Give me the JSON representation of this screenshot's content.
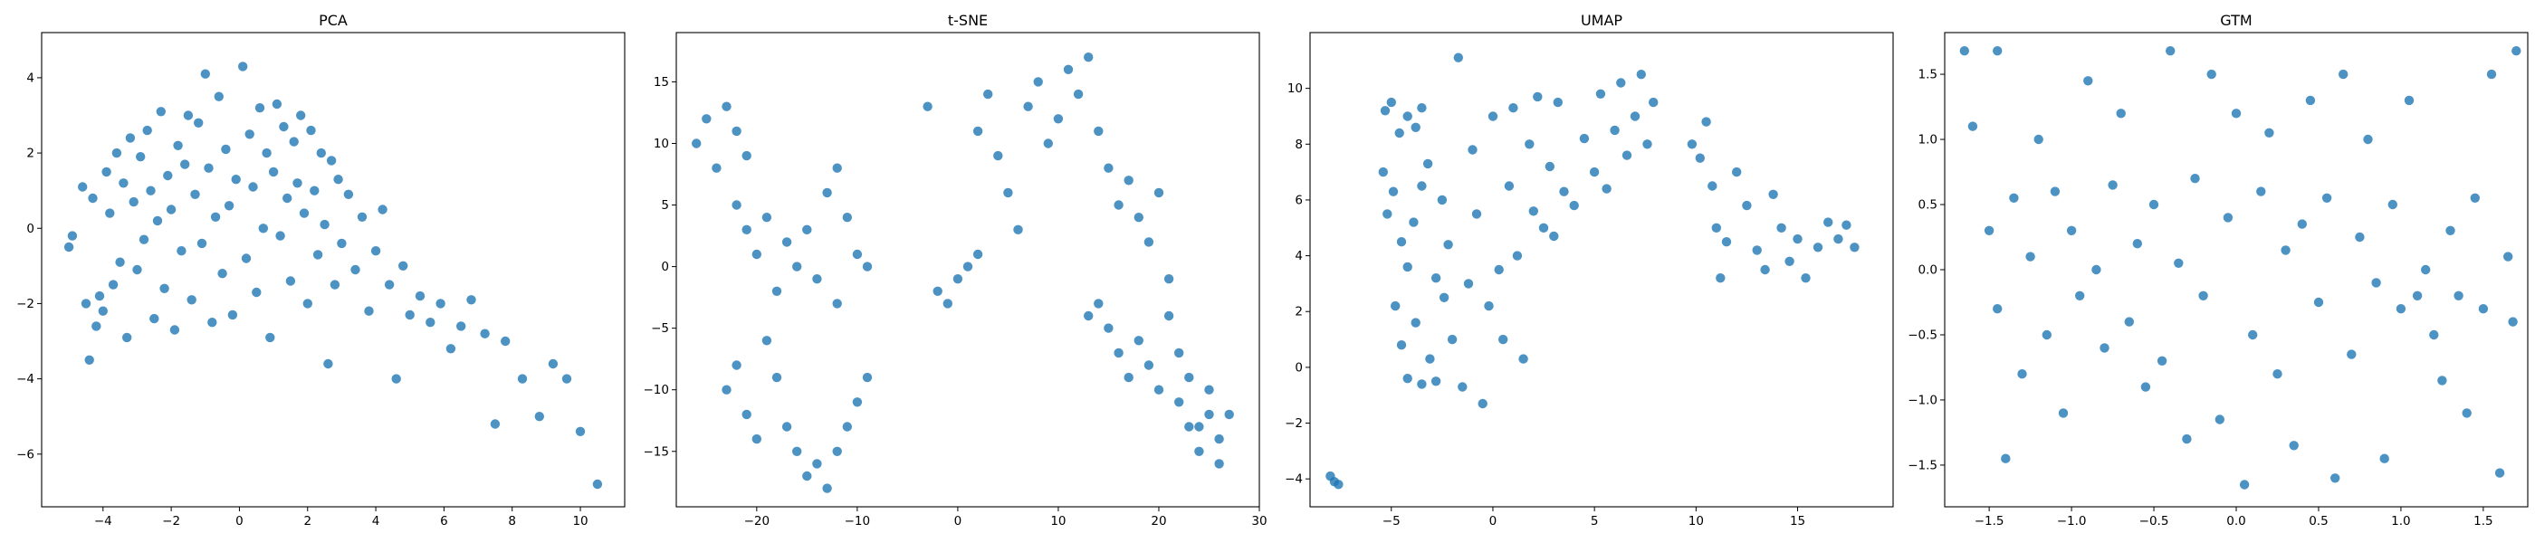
{
  "chart_data": [
    {
      "type": "scatter",
      "title": "PCA",
      "xlabel": "",
      "ylabel": "",
      "xlim": [
        -5.8,
        11.3
      ],
      "ylim": [
        -7.4,
        5.2
      ],
      "xticks": [
        -4,
        -2,
        0,
        2,
        4,
        6,
        8,
        10
      ],
      "yticks": [
        -6,
        -4,
        -2,
        0,
        2,
        4
      ],
      "grid": false,
      "color": "#1f77b4",
      "points": [
        [
          -5.0,
          -0.5
        ],
        [
          -4.9,
          -0.2
        ],
        [
          -4.6,
          1.1
        ],
        [
          -4.5,
          -2.0
        ],
        [
          -4.4,
          -3.5
        ],
        [
          -4.3,
          0.8
        ],
        [
          -4.2,
          -2.6
        ],
        [
          -4.1,
          -1.8
        ],
        [
          -4.0,
          -2.2
        ],
        [
          -3.9,
          1.5
        ],
        [
          -3.8,
          0.4
        ],
        [
          -3.7,
          -1.5
        ],
        [
          -3.6,
          2.0
        ],
        [
          -3.5,
          -0.9
        ],
        [
          -3.4,
          1.2
        ],
        [
          -3.3,
          -2.9
        ],
        [
          -3.2,
          2.4
        ],
        [
          -3.1,
          0.7
        ],
        [
          -3.0,
          -1.1
        ],
        [
          -2.9,
          1.9
        ],
        [
          -2.8,
          -0.3
        ],
        [
          -2.7,
          2.6
        ],
        [
          -2.6,
          1.0
        ],
        [
          -2.5,
          -2.4
        ],
        [
          -2.4,
          0.2
        ],
        [
          -2.3,
          3.1
        ],
        [
          -2.2,
          -1.6
        ],
        [
          -2.1,
          1.4
        ],
        [
          -2.0,
          0.5
        ],
        [
          -1.9,
          -2.7
        ],
        [
          -1.8,
          2.2
        ],
        [
          -1.7,
          -0.6
        ],
        [
          -1.6,
          1.7
        ],
        [
          -1.5,
          3.0
        ],
        [
          -1.4,
          -1.9
        ],
        [
          -1.3,
          0.9
        ],
        [
          -1.2,
          2.8
        ],
        [
          -1.1,
          -0.4
        ],
        [
          -1.0,
          4.1
        ],
        [
          -0.9,
          1.6
        ],
        [
          -0.8,
          -2.5
        ],
        [
          -0.7,
          0.3
        ],
        [
          -0.6,
          3.5
        ],
        [
          -0.5,
          -1.2
        ],
        [
          -0.4,
          2.1
        ],
        [
          -0.3,
          0.6
        ],
        [
          -0.2,
          -2.3
        ],
        [
          -0.1,
          1.3
        ],
        [
          0.1,
          4.3
        ],
        [
          0.2,
          -0.8
        ],
        [
          0.3,
          2.5
        ],
        [
          0.4,
          1.1
        ],
        [
          0.5,
          -1.7
        ],
        [
          0.6,
          3.2
        ],
        [
          0.7,
          0.0
        ],
        [
          0.8,
          2.0
        ],
        [
          0.9,
          -2.9
        ],
        [
          1.0,
          1.5
        ],
        [
          1.1,
          3.3
        ],
        [
          1.2,
          -0.2
        ],
        [
          1.3,
          2.7
        ],
        [
          1.4,
          0.8
        ],
        [
          1.5,
          -1.4
        ],
        [
          1.6,
          2.3
        ],
        [
          1.7,
          1.2
        ],
        [
          1.8,
          3.0
        ],
        [
          1.9,
          0.4
        ],
        [
          2.0,
          -2.0
        ],
        [
          2.1,
          2.6
        ],
        [
          2.2,
          1.0
        ],
        [
          2.3,
          -0.7
        ],
        [
          2.4,
          2.0
        ],
        [
          2.5,
          0.1
        ],
        [
          2.6,
          -3.6
        ],
        [
          2.7,
          1.8
        ],
        [
          2.8,
          -1.5
        ],
        [
          2.9,
          1.3
        ],
        [
          3.0,
          -0.4
        ],
        [
          3.2,
          0.9
        ],
        [
          3.4,
          -1.1
        ],
        [
          3.6,
          0.3
        ],
        [
          3.8,
          -2.2
        ],
        [
          4.0,
          -0.6
        ],
        [
          4.2,
          0.5
        ],
        [
          4.4,
          -1.5
        ],
        [
          4.6,
          -4.0
        ],
        [
          4.8,
          -1.0
        ],
        [
          5.0,
          -2.3
        ],
        [
          5.3,
          -1.8
        ],
        [
          5.6,
          -2.5
        ],
        [
          5.9,
          -2.0
        ],
        [
          6.2,
          -3.2
        ],
        [
          6.5,
          -2.6
        ],
        [
          6.8,
          -1.9
        ],
        [
          7.2,
          -2.8
        ],
        [
          7.5,
          -5.2
        ],
        [
          7.8,
          -3.0
        ],
        [
          8.3,
          -4.0
        ],
        [
          8.8,
          -5.0
        ],
        [
          9.2,
          -3.6
        ],
        [
          9.6,
          -4.0
        ],
        [
          10.0,
          -5.4
        ],
        [
          10.5,
          -6.8
        ]
      ]
    },
    {
      "type": "scatter",
      "title": "t-SNE",
      "xlabel": "",
      "ylabel": "",
      "xlim": [
        -28,
        30
      ],
      "ylim": [
        -19.5,
        19
      ],
      "xticks": [
        -20,
        -10,
        0,
        10,
        20,
        30
      ],
      "yticks": [
        -15,
        -10,
        -5,
        0,
        5,
        10,
        15
      ],
      "grid": false,
      "color": "#1f77b4",
      "points": [
        [
          -26,
          10
        ],
        [
          -25,
          12
        ],
        [
          -24,
          8
        ],
        [
          -23,
          13
        ],
        [
          -22,
          11
        ],
        [
          -21,
          9
        ],
        [
          -22,
          5
        ],
        [
          -21,
          3
        ],
        [
          -20,
          1
        ],
        [
          -19,
          4
        ],
        [
          -18,
          -2
        ],
        [
          -17,
          2
        ],
        [
          -16,
          0
        ],
        [
          -15,
          3
        ],
        [
          -14,
          -1
        ],
        [
          -13,
          6
        ],
        [
          -12,
          8
        ],
        [
          -11,
          4
        ],
        [
          -10,
          1
        ],
        [
          -9,
          0
        ],
        [
          -12,
          -3
        ],
        [
          -23,
          -10
        ],
        [
          -22,
          -8
        ],
        [
          -21,
          -12
        ],
        [
          -20,
          -14
        ],
        [
          -19,
          -6
        ],
        [
          -18,
          -9
        ],
        [
          -17,
          -13
        ],
        [
          -16,
          -15
        ],
        [
          -15,
          -17
        ],
        [
          -14,
          -16
        ],
        [
          -13,
          -18
        ],
        [
          -12,
          -15
        ],
        [
          -11,
          -13
        ],
        [
          -10,
          -11
        ],
        [
          -9,
          -9
        ],
        [
          -3,
          13
        ],
        [
          -2,
          -2
        ],
        [
          -1,
          -3
        ],
        [
          0,
          -1
        ],
        [
          1,
          0
        ],
        [
          2,
          1
        ],
        [
          3,
          14
        ],
        [
          2,
          11
        ],
        [
          4,
          9
        ],
        [
          5,
          6
        ],
        [
          6,
          3
        ],
        [
          7,
          13
        ],
        [
          8,
          15
        ],
        [
          9,
          10
        ],
        [
          10,
          12
        ],
        [
          11,
          16
        ],
        [
          12,
          14
        ],
        [
          13,
          17
        ],
        [
          14,
          11
        ],
        [
          15,
          8
        ],
        [
          16,
          5
        ],
        [
          17,
          7
        ],
        [
          18,
          4
        ],
        [
          19,
          2
        ],
        [
          20,
          6
        ],
        [
          21,
          -1
        ],
        [
          13,
          -4
        ],
        [
          14,
          -3
        ],
        [
          15,
          -5
        ],
        [
          16,
          -7
        ],
        [
          17,
          -9
        ],
        [
          18,
          -6
        ],
        [
          19,
          -8
        ],
        [
          20,
          -10
        ],
        [
          21,
          -4
        ],
        [
          22,
          -11
        ],
        [
          23,
          -13
        ],
        [
          24,
          -15
        ],
        [
          25,
          -12
        ],
        [
          26,
          -14
        ],
        [
          27,
          -12
        ],
        [
          26,
          -16
        ],
        [
          25,
          -10
        ],
        [
          24,
          -13
        ],
        [
          23,
          -9
        ],
        [
          22,
          -7
        ]
      ]
    },
    {
      "type": "scatter",
      "title": "UMAP",
      "xlabel": "",
      "ylabel": "",
      "xlim": [
        -9,
        19.7
      ],
      "ylim": [
        -5,
        12
      ],
      "xticks": [
        -5,
        0,
        5,
        10,
        15
      ],
      "yticks": [
        -4,
        -2,
        0,
        2,
        4,
        6,
        8,
        10
      ],
      "grid": false,
      "color": "#1f77b4",
      "points": [
        [
          -8,
          -3.9
        ],
        [
          -7.8,
          -4.1
        ],
        [
          -7.6,
          -4.2
        ],
        [
          -5.3,
          9.2
        ],
        [
          -5,
          9.5
        ],
        [
          -4.6,
          8.4
        ],
        [
          -4.2,
          9.0
        ],
        [
          -3.8,
          8.6
        ],
        [
          -3.5,
          9.3
        ],
        [
          -5.4,
          7.0
        ],
        [
          -5.2,
          5.5
        ],
        [
          -4.9,
          6.3
        ],
        [
          -4.5,
          4.5
        ],
        [
          -4.2,
          3.6
        ],
        [
          -3.9,
          5.2
        ],
        [
          -3.5,
          6.5
        ],
        [
          -3.2,
          7.3
        ],
        [
          -2.8,
          3.2
        ],
        [
          -2.5,
          6.0
        ],
        [
          -2.2,
          4.4
        ],
        [
          -4.8,
          2.2
        ],
        [
          -4.5,
          0.8
        ],
        [
          -4.2,
          -0.4
        ],
        [
          -3.8,
          1.6
        ],
        [
          -3.5,
          -0.6
        ],
        [
          -3.1,
          0.3
        ],
        [
          -2.8,
          -0.5
        ],
        [
          -2.4,
          2.5
        ],
        [
          -2.0,
          1.0
        ],
        [
          -1.7,
          11.1
        ],
        [
          -1.5,
          -0.7
        ],
        [
          -1.2,
          3.0
        ],
        [
          -1.0,
          7.8
        ],
        [
          -0.8,
          5.5
        ],
        [
          -0.5,
          -1.3
        ],
        [
          -0.2,
          2.2
        ],
        [
          0.0,
          9.0
        ],
        [
          0.3,
          3.5
        ],
        [
          0.5,
          1.0
        ],
        [
          0.8,
          6.5
        ],
        [
          1.0,
          9.3
        ],
        [
          1.2,
          4.0
        ],
        [
          1.5,
          0.3
        ],
        [
          1.8,
          8.0
        ],
        [
          2.0,
          5.6
        ],
        [
          2.2,
          9.7
        ],
        [
          2.5,
          5.0
        ],
        [
          2.8,
          7.2
        ],
        [
          3.0,
          4.7
        ],
        [
          3.2,
          9.5
        ],
        [
          3.5,
          6.3
        ],
        [
          4.0,
          5.8
        ],
        [
          4.5,
          8.2
        ],
        [
          5.0,
          7.0
        ],
        [
          5.3,
          9.8
        ],
        [
          5.6,
          6.4
        ],
        [
          6.0,
          8.5
        ],
        [
          6.3,
          10.2
        ],
        [
          6.6,
          7.6
        ],
        [
          7.0,
          9.0
        ],
        [
          7.3,
          10.5
        ],
        [
          7.6,
          8.0
        ],
        [
          7.9,
          9.5
        ],
        [
          9.8,
          8.0
        ],
        [
          10.2,
          7.5
        ],
        [
          10.5,
          8.8
        ],
        [
          10.8,
          6.5
        ],
        [
          11.0,
          5.0
        ],
        [
          11.2,
          3.2
        ],
        [
          11.5,
          4.5
        ],
        [
          12.0,
          7.0
        ],
        [
          12.5,
          5.8
        ],
        [
          13.0,
          4.2
        ],
        [
          13.4,
          3.5
        ],
        [
          13.8,
          6.2
        ],
        [
          14.2,
          5.0
        ],
        [
          14.6,
          3.8
        ],
        [
          15.0,
          4.6
        ],
        [
          15.4,
          3.2
        ],
        [
          16.0,
          4.3
        ],
        [
          16.5,
          5.2
        ],
        [
          17.0,
          4.6
        ],
        [
          17.4,
          5.1
        ],
        [
          17.8,
          4.3
        ]
      ]
    },
    {
      "type": "scatter",
      "title": "GTM",
      "xlabel": "",
      "ylabel": "",
      "xlim": [
        -1.77,
        1.77
      ],
      "ylim": [
        -1.82,
        1.82
      ],
      "xticks": [
        -1.5,
        -1.0,
        -0.5,
        0.0,
        0.5,
        1.0,
        1.5
      ],
      "yticks": [
        -1.5,
        -1.0,
        -0.5,
        0.0,
        0.5,
        1.0,
        1.5
      ],
      "grid": false,
      "color": "#1f77b4",
      "points": [
        [
          -1.65,
          1.68
        ],
        [
          -1.45,
          1.68
        ],
        [
          -1.6,
          1.1
        ],
        [
          -1.5,
          0.3
        ],
        [
          -1.45,
          -0.3
        ],
        [
          -1.4,
          -1.45
        ],
        [
          -1.35,
          0.55
        ],
        [
          -1.3,
          -0.8
        ],
        [
          -1.25,
          0.1
        ],
        [
          -1.2,
          1.0
        ],
        [
          -1.15,
          -0.5
        ],
        [
          -1.1,
          0.6
        ],
        [
          -1.05,
          -1.1
        ],
        [
          -1.0,
          0.3
        ],
        [
          -0.95,
          -0.2
        ],
        [
          -0.9,
          1.45
        ],
        [
          -0.85,
          0.0
        ],
        [
          -0.8,
          -0.6
        ],
        [
          -0.75,
          0.65
        ],
        [
          -0.7,
          1.2
        ],
        [
          -0.65,
          -0.4
        ],
        [
          -0.6,
          0.2
        ],
        [
          -0.55,
          -0.9
        ],
        [
          -0.5,
          0.5
        ],
        [
          -0.45,
          -0.7
        ],
        [
          -0.4,
          1.68
        ],
        [
          -0.35,
          0.05
        ],
        [
          -0.3,
          -1.3
        ],
        [
          -0.25,
          0.7
        ],
        [
          -0.2,
          -0.2
        ],
        [
          -0.15,
          1.5
        ],
        [
          -0.1,
          -1.15
        ],
        [
          -0.05,
          0.4
        ],
        [
          0.0,
          1.2
        ],
        [
          0.05,
          -1.65
        ],
        [
          0.1,
          -0.5
        ],
        [
          0.15,
          0.6
        ],
        [
          0.2,
          1.05
        ],
        [
          0.25,
          -0.8
        ],
        [
          0.3,
          0.15
        ],
        [
          0.35,
          -1.35
        ],
        [
          0.4,
          0.35
        ],
        [
          0.45,
          1.3
        ],
        [
          0.5,
          -0.25
        ],
        [
          0.55,
          0.55
        ],
        [
          0.6,
          -1.6
        ],
        [
          0.65,
          1.5
        ],
        [
          0.7,
          -0.65
        ],
        [
          0.75,
          0.25
        ],
        [
          0.8,
          1.0
        ],
        [
          0.85,
          -0.1
        ],
        [
          0.9,
          -1.45
        ],
        [
          0.95,
          0.5
        ],
        [
          1.0,
          -0.3
        ],
        [
          1.05,
          1.3
        ],
        [
          1.1,
          -0.2
        ],
        [
          1.15,
          0.0
        ],
        [
          1.2,
          -0.5
        ],
        [
          1.25,
          -0.85
        ],
        [
          1.3,
          0.3
        ],
        [
          1.35,
          -0.2
        ],
        [
          1.4,
          -1.1
        ],
        [
          1.45,
          0.55
        ],
        [
          1.5,
          -0.3
        ],
        [
          1.55,
          1.5
        ],
        [
          1.6,
          -1.56
        ],
        [
          1.65,
          0.1
        ],
        [
          1.7,
          1.68
        ],
        [
          1.68,
          -0.4
        ]
      ]
    }
  ]
}
